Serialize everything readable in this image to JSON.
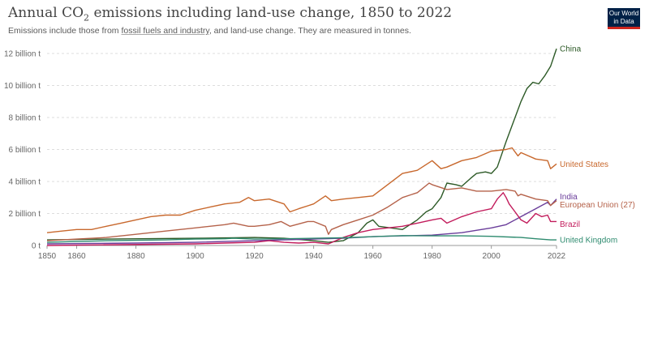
{
  "header": {
    "title_main": "Annual CO",
    "title_sub": "2",
    "title_rest": " emissions including land-use change, 1850 to 2022",
    "subtitle_pre": "Emissions include those from ",
    "subtitle_link": "fossil fuels and industry",
    "subtitle_post": ", and land-use change. They are measured in tonnes.",
    "logo_line1": "Our World",
    "logo_line2": "in Data"
  },
  "colors": {
    "China": "#2d5a27",
    "United States": "#c8682d",
    "India": "#6a3d9a",
    "European Union (27)": "#b5624a",
    "Brazil": "#c21c5c",
    "United Kingdom": "#2e8b6f",
    "grid": "#dddddd"
  },
  "chart_data": {
    "type": "line",
    "ylim": [
      0,
      12.5
    ],
    "xlim": [
      1850,
      2022
    ],
    "y_ticks": [
      {
        "value": 0,
        "label": "0 t"
      },
      {
        "value": 2,
        "label": "2 billion t"
      },
      {
        "value": 4,
        "label": "4 billion t"
      },
      {
        "value": 6,
        "label": "6 billion t"
      },
      {
        "value": 8,
        "label": "8 billion t"
      },
      {
        "value": 10,
        "label": "10 billion t"
      },
      {
        "value": 12,
        "label": "12 billion t"
      }
    ],
    "x_ticks": [
      {
        "value": 1850,
        "label": "1850"
      },
      {
        "value": 1860,
        "label": "1860"
      },
      {
        "value": 1880,
        "label": "1880"
      },
      {
        "value": 1900,
        "label": "1900"
      },
      {
        "value": 1920,
        "label": "1920"
      },
      {
        "value": 1940,
        "label": "1940"
      },
      {
        "value": 1960,
        "label": "1960"
      },
      {
        "value": 1980,
        "label": "1980"
      },
      {
        "value": 2000,
        "label": "2000"
      },
      {
        "value": 2022,
        "label": "2022"
      }
    ],
    "grid": true,
    "series": [
      {
        "name": "China",
        "x": [
          1850,
          1870,
          1900,
          1920,
          1930,
          1940,
          1945,
          1950,
          1955,
          1958,
          1960,
          1962,
          1970,
          1975,
          1978,
          1980,
          1983,
          1985,
          1988,
          1990,
          1993,
          1995,
          1998,
          2000,
          2002,
          2005,
          2008,
          2010,
          2012,
          2014,
          2016,
          2018,
          2020,
          2022
        ],
        "y": [
          0.35,
          0.4,
          0.45,
          0.5,
          0.45,
          0.3,
          0.2,
          0.3,
          0.8,
          1.4,
          1.6,
          1.2,
          1.0,
          1.6,
          2.1,
          2.3,
          3.0,
          3.9,
          3.8,
          3.7,
          4.2,
          4.5,
          4.6,
          4.5,
          4.9,
          6.5,
          8.0,
          9.0,
          9.8,
          10.2,
          10.1,
          10.6,
          11.2,
          12.3
        ]
      },
      {
        "name": "United States",
        "x": [
          1850,
          1855,
          1860,
          1865,
          1870,
          1875,
          1880,
          1885,
          1890,
          1895,
          1900,
          1905,
          1910,
          1915,
          1918,
          1920,
          1925,
          1930,
          1932,
          1935,
          1940,
          1944,
          1946,
          1950,
          1955,
          1960,
          1965,
          1970,
          1975,
          1980,
          1983,
          1985,
          1990,
          1995,
          2000,
          2005,
          2007,
          2009,
          2010,
          2015,
          2019,
          2020,
          2022
        ],
        "y": [
          0.8,
          0.9,
          1.0,
          1.0,
          1.2,
          1.4,
          1.6,
          1.8,
          1.9,
          1.9,
          2.2,
          2.4,
          2.6,
          2.7,
          3.0,
          2.8,
          2.9,
          2.6,
          2.1,
          2.3,
          2.6,
          3.1,
          2.8,
          2.9,
          3.0,
          3.1,
          3.8,
          4.5,
          4.7,
          5.3,
          4.8,
          4.9,
          5.3,
          5.5,
          5.9,
          6.0,
          6.1,
          5.6,
          5.8,
          5.4,
          5.3,
          4.8,
          5.1
        ]
      },
      {
        "name": "India",
        "x": [
          1850,
          1880,
          1900,
          1920,
          1940,
          1950,
          1960,
          1970,
          1980,
          1990,
          2000,
          2005,
          2010,
          2015,
          2019,
          2020,
          2022
        ],
        "y": [
          0.1,
          0.15,
          0.2,
          0.3,
          0.4,
          0.45,
          0.55,
          0.6,
          0.65,
          0.8,
          1.1,
          1.3,
          1.8,
          2.3,
          2.7,
          2.5,
          2.9
        ]
      },
      {
        "name": "European Union (27)",
        "x": [
          1850,
          1860,
          1870,
          1880,
          1890,
          1900,
          1910,
          1913,
          1918,
          1920,
          1925,
          1929,
          1932,
          1938,
          1940,
          1944,
          1945,
          1946,
          1950,
          1955,
          1960,
          1965,
          1970,
          1975,
          1979,
          1980,
          1985,
          1990,
          1995,
          2000,
          2005,
          2008,
          2009,
          2010,
          2015,
          2019,
          2020,
          2022
        ],
        "y": [
          0.3,
          0.4,
          0.5,
          0.7,
          0.9,
          1.1,
          1.3,
          1.4,
          1.2,
          1.2,
          1.3,
          1.5,
          1.2,
          1.5,
          1.5,
          1.2,
          0.7,
          1.0,
          1.3,
          1.6,
          1.9,
          2.4,
          3.0,
          3.3,
          3.9,
          3.8,
          3.5,
          3.6,
          3.4,
          3.4,
          3.5,
          3.4,
          3.1,
          3.2,
          2.9,
          2.8,
          2.5,
          2.8
        ]
      },
      {
        "name": "Brazil",
        "x": [
          1850,
          1900,
          1910,
          1920,
          1925,
          1930,
          1935,
          1940,
          1945,
          1950,
          1955,
          1960,
          1965,
          1970,
          1975,
          1980,
          1983,
          1985,
          1990,
          1995,
          2000,
          2002,
          2004,
          2005,
          2006,
          2008,
          2010,
          2012,
          2015,
          2017,
          2019,
          2020,
          2022
        ],
        "y": [
          0.0,
          0.1,
          0.15,
          0.2,
          0.3,
          0.2,
          0.15,
          0.2,
          0.1,
          0.5,
          0.8,
          1.0,
          1.1,
          1.2,
          1.4,
          1.6,
          1.7,
          1.4,
          1.8,
          2.1,
          2.3,
          2.9,
          3.3,
          3.0,
          2.6,
          2.1,
          1.6,
          1.4,
          2.0,
          1.8,
          1.9,
          1.5,
          1.5
        ]
      },
      {
        "name": "United Kingdom",
        "x": [
          1850,
          1870,
          1890,
          1900,
          1910,
          1913,
          1920,
          1930,
          1940,
          1950,
          1960,
          1970,
          1980,
          1990,
          2000,
          2010,
          2015,
          2020,
          2022
        ],
        "y": [
          0.2,
          0.3,
          0.35,
          0.4,
          0.42,
          0.45,
          0.4,
          0.42,
          0.45,
          0.48,
          0.55,
          0.62,
          0.6,
          0.6,
          0.57,
          0.5,
          0.42,
          0.35,
          0.35
        ]
      }
    ]
  }
}
